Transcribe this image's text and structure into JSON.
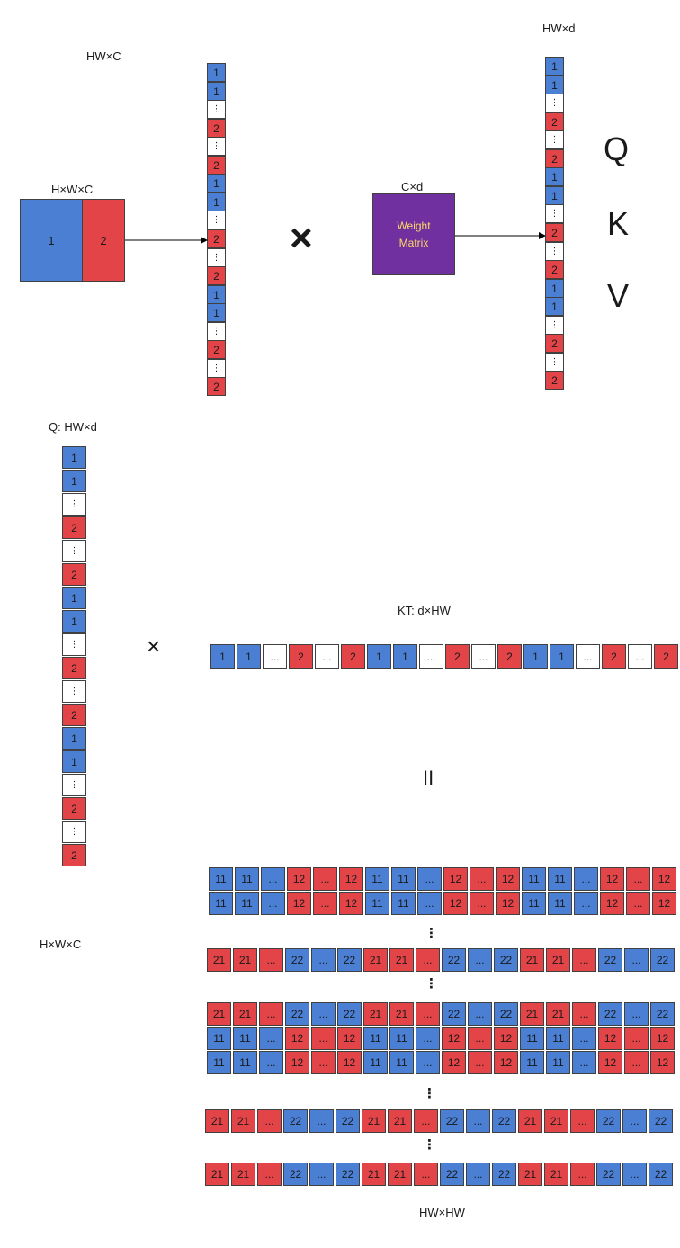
{
  "labels": {
    "hwc_top": "HW×C",
    "hwxc_input": "H×W×C",
    "cd": "C×d",
    "hwd_top": "HW×d",
    "q_label": "Q:  HW×d",
    "kt_label": "KT:  d×HW",
    "hwxc_mid": "H×W×C",
    "result_label": "HW×HW"
  },
  "symbols": {
    "times_big": "×",
    "times_small": "×",
    "equals": "II",
    "q": "Q",
    "k": "K",
    "v": "V",
    "vdots": "⋮",
    "hdots": "..."
  },
  "input_block": {
    "left_value": "1",
    "right_value": "2"
  },
  "weight_matrix": {
    "line1": "Weight",
    "line2": "Matrix"
  },
  "colors": {
    "blue": "#4a7fd4",
    "red": "#e24448",
    "purple": "#7030a0",
    "weight_text": "#ffd966"
  },
  "flattened_column": [
    "1",
    "1",
    "⋮",
    "2",
    "⋮",
    "2",
    "1",
    "1",
    "⋮",
    "2",
    "⋮",
    "2",
    "1",
    "1",
    "⋮",
    "2",
    "⋮",
    "2"
  ],
  "q_column": [
    "1",
    "1",
    "⋮",
    "2",
    "⋮",
    "2",
    "1",
    "1",
    "⋮",
    "2",
    "⋮",
    "2",
    "1",
    "1",
    "⋮",
    "2",
    "⋮",
    "2"
  ],
  "kt_row": [
    "1",
    "1",
    "...",
    "2",
    "...",
    "2",
    "1",
    "1",
    "...",
    "2",
    "...",
    "2",
    "1",
    "1",
    "...",
    "2",
    "...",
    "2"
  ],
  "result_rows": {
    "row_a": [
      "11",
      "11",
      "...",
      "12",
      "...",
      "12",
      "11",
      "11",
      "...",
      "12",
      "...",
      "12",
      "11",
      "11",
      "...",
      "12",
      "...",
      "12"
    ],
    "row_b": [
      "21",
      "21",
      "...",
      "22",
      "...",
      "22",
      "21",
      "21",
      "...",
      "22",
      "...",
      "22",
      "21",
      "21",
      "...",
      "22",
      "...",
      "22"
    ],
    "row_a_colors": [
      "b",
      "b",
      "b",
      "r",
      "r",
      "r",
      "b",
      "b",
      "b",
      "r",
      "r",
      "r",
      "b",
      "b",
      "b",
      "r",
      "r",
      "r"
    ],
    "row_b_colors": [
      "r",
      "r",
      "r",
      "b",
      "b",
      "b",
      "r",
      "r",
      "r",
      "b",
      "b",
      "b",
      "r",
      "r",
      "r",
      "b",
      "b",
      "b"
    ]
  }
}
